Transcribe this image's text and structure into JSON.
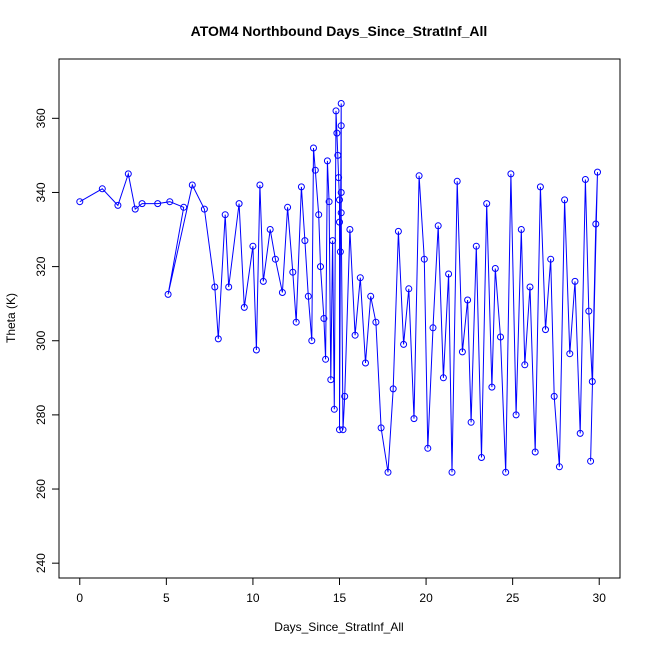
{
  "chart_data": {
    "type": "scatter",
    "title": "ATOM4 Northbound Days_Since_StratInf_All",
    "xlabel": "Days_Since_StratInf_All",
    "ylabel": "Theta (K)",
    "xlim": [
      -1.2,
      31.2
    ],
    "ylim": [
      236,
      376
    ],
    "xticks": [
      0,
      5,
      10,
      15,
      20,
      25,
      30
    ],
    "yticks": [
      240,
      260,
      280,
      300,
      320,
      340,
      360
    ],
    "grid": false,
    "legend": "none",
    "series_color": "#0000ff",
    "series": [
      {
        "style": "points-and-lines",
        "points": [
          [
            0.0,
            337.5
          ],
          [
            1.3,
            341.0
          ],
          [
            2.2,
            336.5
          ],
          [
            2.8,
            345.0
          ],
          [
            3.2,
            335.5
          ],
          [
            3.6,
            337.0
          ],
          [
            4.5,
            337.0
          ],
          [
            5.2,
            337.5
          ],
          [
            6.0,
            336.0
          ],
          [
            5.1,
            312.5
          ],
          [
            6.5,
            342.0
          ],
          [
            7.2,
            335.5
          ],
          [
            7.8,
            314.5
          ],
          [
            8.0,
            300.5
          ],
          [
            8.4,
            334.0
          ],
          [
            8.6,
            314.5
          ],
          [
            9.2,
            337.0
          ],
          [
            9.5,
            309.0
          ],
          [
            10.0,
            325.5
          ],
          [
            10.2,
            297.5
          ],
          [
            10.4,
            342.0
          ],
          [
            10.6,
            316.0
          ],
          [
            11.0,
            330.0
          ],
          [
            11.3,
            322.0
          ],
          [
            11.7,
            313.0
          ],
          [
            12.0,
            336.0
          ],
          [
            12.3,
            318.5
          ],
          [
            12.5,
            305.0
          ],
          [
            12.8,
            341.5
          ],
          [
            13.0,
            327.0
          ],
          [
            13.2,
            312.0
          ],
          [
            13.4,
            300.0
          ],
          [
            13.5,
            352.0
          ],
          [
            13.6,
            346.0
          ],
          [
            13.8,
            334.0
          ],
          [
            13.9,
            320.0
          ],
          [
            14.1,
            306.0
          ],
          [
            14.2,
            295.0
          ],
          [
            14.3,
            348.5
          ],
          [
            14.4,
            337.5
          ],
          [
            14.5,
            289.5
          ],
          [
            14.6,
            327.0
          ],
          [
            14.7,
            281.5
          ],
          [
            14.8,
            362.0
          ],
          [
            14.85,
            356.0
          ],
          [
            14.9,
            350.0
          ],
          [
            14.95,
            344.0
          ],
          [
            15.0,
            338.0
          ],
          [
            15.0,
            332.0
          ],
          [
            15.0,
            276.0
          ],
          [
            15.05,
            324.0
          ],
          [
            15.1,
            364.0
          ],
          [
            15.1,
            358.0
          ],
          [
            15.1,
            340.0
          ],
          [
            15.1,
            334.5
          ],
          [
            15.2,
            276.0
          ],
          [
            15.3,
            285.0
          ],
          [
            15.6,
            330.0
          ],
          [
            15.9,
            301.5
          ],
          [
            16.2,
            317.0
          ],
          [
            16.5,
            294.0
          ],
          [
            16.8,
            312.0
          ],
          [
            17.1,
            305.0
          ],
          [
            17.4,
            276.5
          ],
          [
            17.8,
            264.5
          ],
          [
            18.1,
            287.0
          ],
          [
            18.4,
            329.5
          ],
          [
            18.7,
            299.0
          ],
          [
            19.0,
            314.0
          ],
          [
            19.3,
            279.0
          ],
          [
            19.6,
            344.5
          ],
          [
            19.9,
            322.0
          ],
          [
            20.1,
            271.0
          ],
          [
            20.4,
            303.5
          ],
          [
            20.7,
            331.0
          ],
          [
            21.0,
            290.0
          ],
          [
            21.3,
            318.0
          ],
          [
            21.5,
            264.5
          ],
          [
            21.8,
            343.0
          ],
          [
            22.1,
            297.0
          ],
          [
            22.4,
            311.0
          ],
          [
            22.6,
            278.0
          ],
          [
            22.9,
            325.5
          ],
          [
            23.2,
            268.5
          ],
          [
            23.5,
            337.0
          ],
          [
            23.8,
            287.5
          ],
          [
            24.0,
            319.5
          ],
          [
            24.3,
            301.0
          ],
          [
            24.6,
            264.5
          ],
          [
            24.9,
            345.0
          ],
          [
            25.2,
            280.0
          ],
          [
            25.5,
            330.0
          ],
          [
            25.7,
            293.5
          ],
          [
            26.0,
            314.5
          ],
          [
            26.3,
            270.0
          ],
          [
            26.6,
            341.5
          ],
          [
            26.9,
            303.0
          ],
          [
            27.2,
            322.0
          ],
          [
            27.4,
            285.0
          ],
          [
            27.7,
            266.0
          ],
          [
            28.0,
            338.0
          ],
          [
            28.3,
            296.5
          ],
          [
            28.6,
            316.0
          ],
          [
            28.9,
            275.0
          ],
          [
            29.2,
            343.5
          ],
          [
            29.4,
            308.0
          ],
          [
            29.6,
            289.0
          ],
          [
            29.8,
            331.5
          ],
          [
            29.9,
            345.5
          ],
          [
            29.5,
            267.5
          ]
        ]
      }
    ]
  }
}
